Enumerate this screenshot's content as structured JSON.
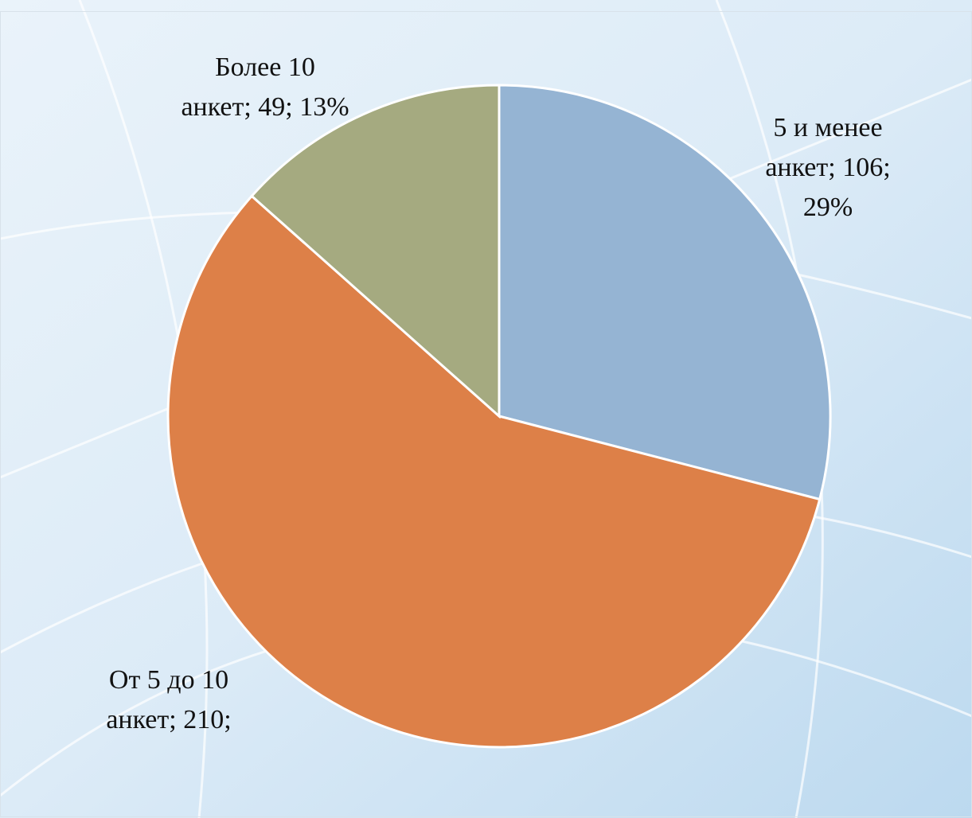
{
  "chart_data": {
    "type": "pie",
    "values": [
      106,
      210,
      49
    ],
    "value_labels": [
      "5 и менее\nанкет; 106; 29%",
      "От 5 до 10\nанкет; 210;",
      "Более 10\nанкет; 49; 13%"
    ],
    "colors": [
      "#95b4d3",
      "#dd8048",
      "#a5aa80"
    ],
    "start_angle": 0,
    "direction": "clockwise"
  }
}
